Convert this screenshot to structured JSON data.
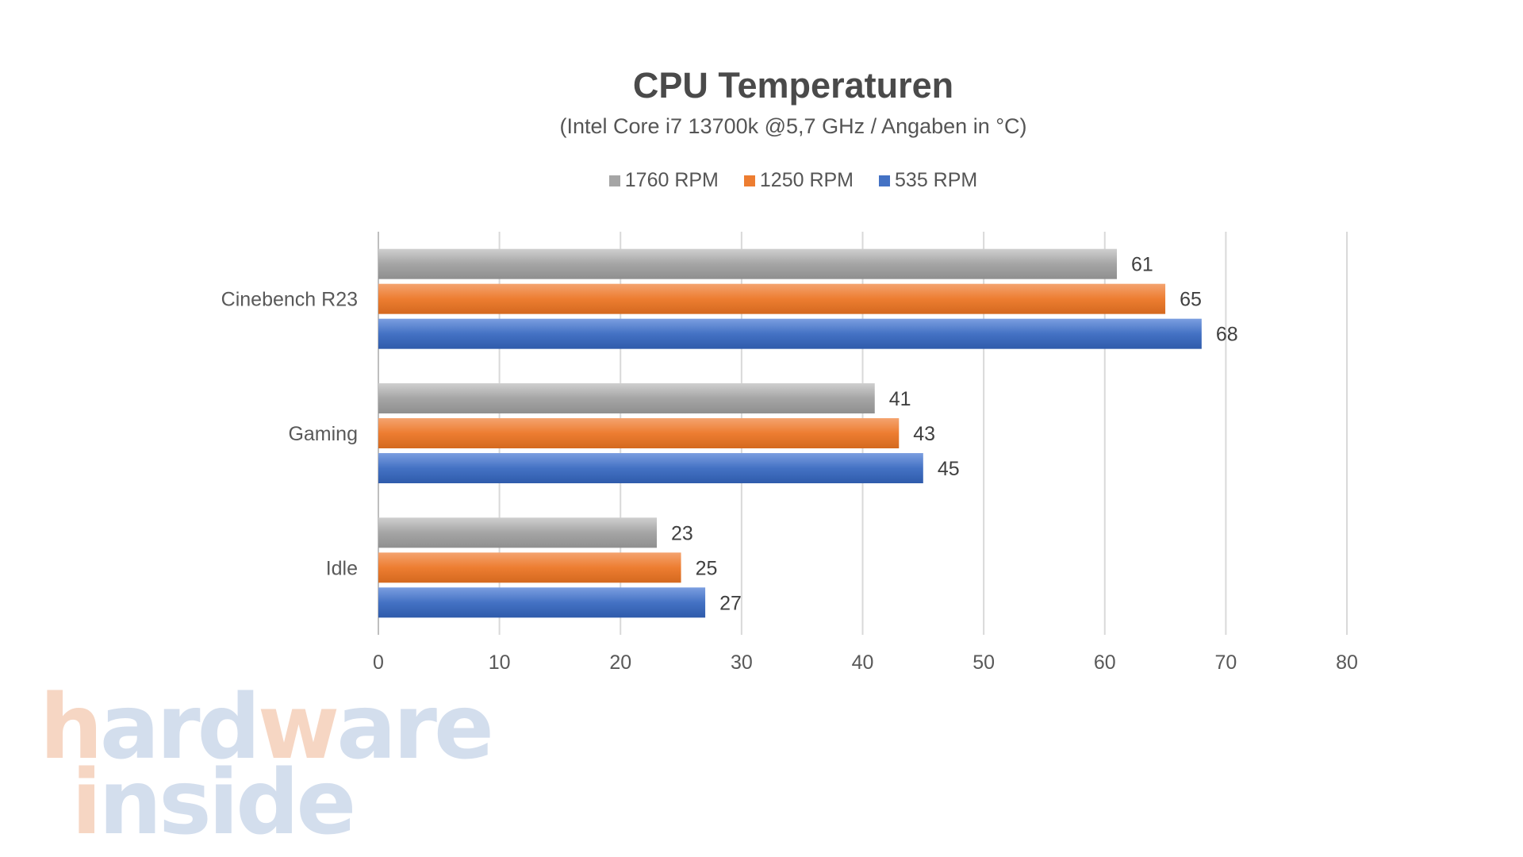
{
  "chart_data": {
    "type": "bar",
    "orientation": "horizontal",
    "title": "CPU Temperaturen",
    "subtitle": "(Intel Core i7 13700k @5,7 GHz / Angaben in °C)",
    "categories": [
      "Cinebench R23",
      "Gaming",
      "Idle"
    ],
    "series": [
      {
        "name": "1760 RPM",
        "color": "#a5a5a5",
        "values": [
          61,
          41,
          23
        ]
      },
      {
        "name": "1250 RPM",
        "color": "#ed7d31",
        "values": [
          65,
          43,
          25
        ]
      },
      {
        "name": "535 RPM",
        "color": "#4472c4",
        "values": [
          68,
          45,
          27
        ]
      }
    ],
    "xlim": [
      0,
      80
    ],
    "xticks": [
      0,
      10,
      20,
      30,
      40,
      50,
      60,
      70,
      80
    ],
    "grid": true,
    "legend_position": "top-center",
    "data_labels": true
  },
  "watermark": {
    "line1": "hardware",
    "line2": "inside"
  }
}
